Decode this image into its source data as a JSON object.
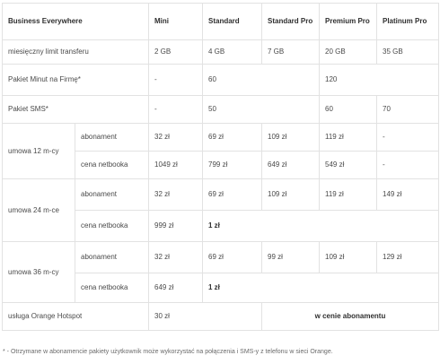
{
  "table": {
    "header": {
      "title": "Business Everywhere",
      "plans": [
        "Mini",
        "Standard",
        "Standard Pro",
        "Premium Pro",
        "Platinum Pro"
      ]
    },
    "rows": {
      "transfer": {
        "label": "miesięczny limit transferu",
        "values": [
          "2 GB",
          "4 GB",
          "7 GB",
          "20 GB",
          "35 GB"
        ]
      },
      "minutes": {
        "label": "Pakiet Minut na Firmę*",
        "values": [
          "-",
          "60",
          "120"
        ]
      },
      "sms": {
        "label": "Pakiet SMS*",
        "values": [
          "-",
          "50",
          "60",
          "70"
        ]
      },
      "contract12": {
        "label": "umowa 12 m-cy",
        "subscription_label": "abonament",
        "subscription": [
          "32 zł",
          "69 zł",
          "109 zł",
          "119 zł",
          "-"
        ],
        "netbook_label": "cena netbooka",
        "netbook": [
          "1049 zł",
          "799 zł",
          "649 zł",
          "549 zł",
          "-"
        ]
      },
      "contract24": {
        "label": "umowa 24 m-ce",
        "subscription_label": "abonament",
        "subscription": [
          "32 zł",
          "69 zł",
          "109 zł",
          "119 zł",
          "149 zł"
        ],
        "netbook_label": "cena netbooka",
        "netbook": [
          "999 zł",
          "1 zł"
        ]
      },
      "contract36": {
        "label": "umowa 36 m-cy",
        "subscription_label": "abonament",
        "subscription": [
          "32 zł",
          "69 zł",
          "99 zł",
          "109 zł",
          "129 zł"
        ],
        "netbook_label": "cena netbooka",
        "netbook": [
          "649 zł",
          "1 zł"
        ]
      },
      "hotspot": {
        "label": "usługa Orange Hotspot",
        "values": [
          "30 zł",
          "w cenie abonamentu"
        ]
      }
    }
  },
  "footnote": "* - Otrzymane w abonamencie pakiety użytkownik może wykorzystać na połączenia i SMS-y z telefonu w sieci Orange."
}
